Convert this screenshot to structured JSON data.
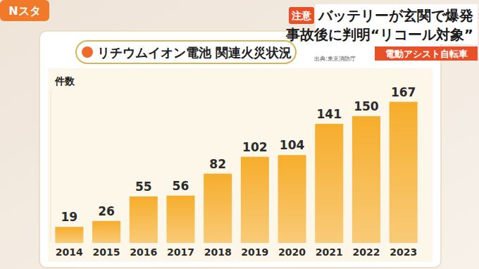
{
  "screen": {
    "logo": "Nスタ",
    "tag": "注意",
    "headline": [
      "バッテリーが玄関で爆発",
      "事故後に判明“リコール対象”"
    ],
    "caption": "電動アシスト自転車"
  },
  "chart_data": {
    "type": "bar",
    "title": "リチウムイオン電池 関連火災状況",
    "subtitle": "出典:東京消防庁",
    "y_label": "件数",
    "categories": [
      "2014",
      "2015",
      "2016",
      "2017",
      "2018",
      "2019",
      "2020",
      "2021",
      "2022",
      "2023"
    ],
    "values": [
      19,
      26,
      55,
      56,
      82,
      102,
      104,
      141,
      150,
      167
    ],
    "color": "#f6ad2c",
    "ylim": [
      0,
      180
    ],
    "yticks": [],
    "grid": false,
    "data_labels": true,
    "tick_labels": "x"
  }
}
